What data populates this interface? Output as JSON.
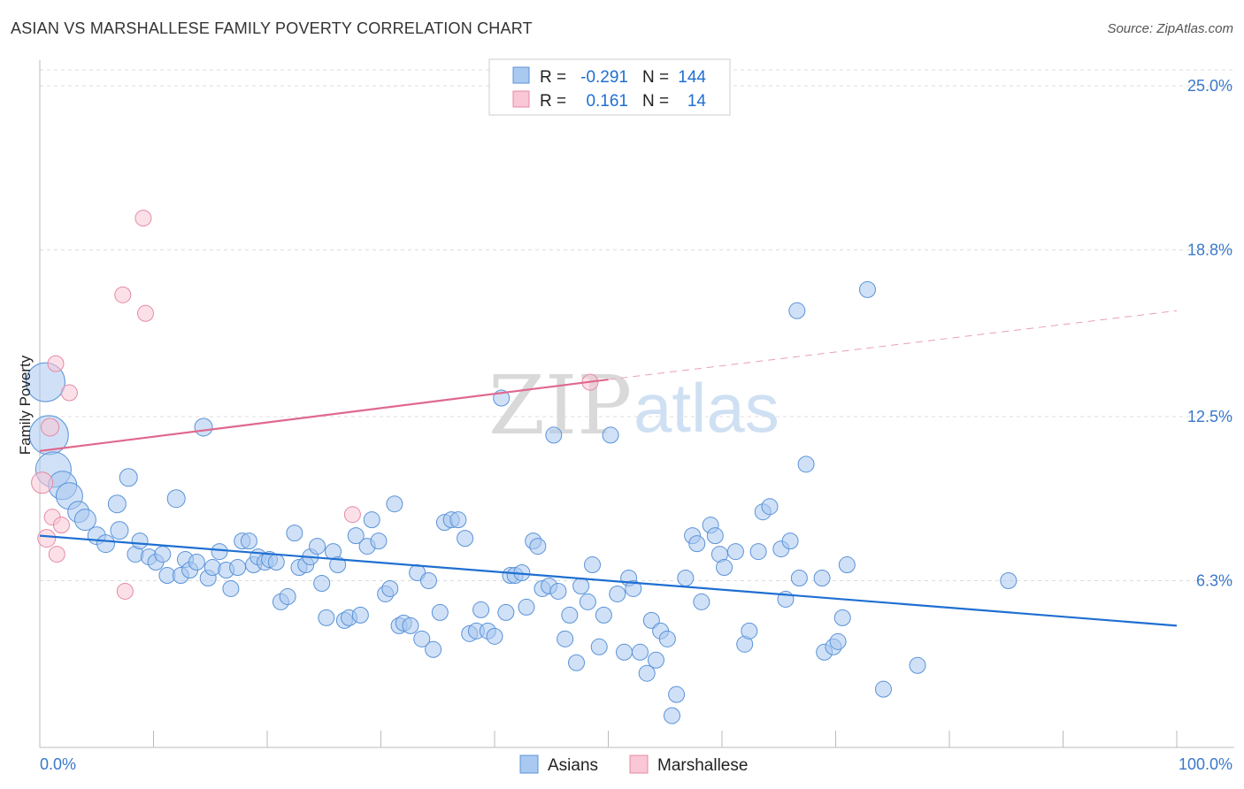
{
  "title": "ASIAN VS MARSHALLESE FAMILY POVERTY CORRELATION CHART",
  "source": "Source: ZipAtlas.com",
  "watermark": {
    "part1": "ZIP",
    "part2": "atlas"
  },
  "legend": {
    "r_label": "R =",
    "n_label": "N =",
    "rows": [
      {
        "r": "-0.291",
        "n": "144",
        "color": "#a9c9f0",
        "stroke": "#5a93d8"
      },
      {
        "r": "0.161",
        "n": "14",
        "color": "#f9c7d5",
        "stroke": "#e48aa6"
      }
    ]
  },
  "bottom_legend": [
    "Asians",
    "Marshallese"
  ],
  "chart_data": {
    "type": "scatter",
    "title": "ASIAN VS MARSHALLESE FAMILY POVERTY CORRELATION CHART",
    "ylabel": "Family Poverty",
    "xlabel": "",
    "x_ticks": [
      "0.0%",
      "100.0%"
    ],
    "y_ticks": [
      "25.0%",
      "18.8%",
      "12.5%",
      "6.3%"
    ],
    "y_tick_values": [
      25.0,
      18.8,
      12.5,
      6.3
    ],
    "xlim": [
      0,
      100
    ],
    "ylim": [
      0,
      25.6
    ],
    "grid": true,
    "legend_position": "top-center",
    "series": [
      {
        "name": "Asians",
        "color": "#a9c9f0",
        "stroke": "#5a93d8",
        "points": [
          [
            0.5,
            13.8,
            2.2
          ],
          [
            0.8,
            11.8,
            2.2
          ],
          [
            1.2,
            10.5,
            2.0
          ],
          [
            2.0,
            9.9,
            1.6
          ],
          [
            2.6,
            9.5,
            1.5
          ],
          [
            3.4,
            8.9,
            1.2
          ],
          [
            4.0,
            8.6,
            1.2
          ],
          [
            5.0,
            8.0,
            1.0
          ],
          [
            5.8,
            7.7,
            1.0
          ],
          [
            6.8,
            9.2,
            1.0
          ],
          [
            7.0,
            8.2,
            1.0
          ],
          [
            7.8,
            10.2,
            1.0
          ],
          [
            8.4,
            7.3,
            0.9
          ],
          [
            8.8,
            7.8,
            0.9
          ],
          [
            9.6,
            7.2,
            0.9
          ],
          [
            10.2,
            7.0,
            0.9
          ],
          [
            10.8,
            7.3,
            0.9
          ],
          [
            11.2,
            6.5,
            0.9
          ],
          [
            12.0,
            9.4,
            1.0
          ],
          [
            12.4,
            6.5,
            0.9
          ],
          [
            12.8,
            7.1,
            0.9
          ],
          [
            13.2,
            6.7,
            0.9
          ],
          [
            13.8,
            7.0,
            0.9
          ],
          [
            14.4,
            12.1,
            1.0
          ],
          [
            14.8,
            6.4,
            0.9
          ],
          [
            15.2,
            6.8,
            0.9
          ],
          [
            15.8,
            7.4,
            0.9
          ],
          [
            16.4,
            6.7,
            0.9
          ],
          [
            16.8,
            6.0,
            0.9
          ],
          [
            17.4,
            6.8,
            0.9
          ],
          [
            17.8,
            7.8,
            0.9
          ],
          [
            18.4,
            7.8,
            0.9
          ],
          [
            18.8,
            6.9,
            0.9
          ],
          [
            19.2,
            7.2,
            0.9
          ],
          [
            19.8,
            7.0,
            0.9
          ],
          [
            20.2,
            7.1,
            0.9
          ],
          [
            20.8,
            7.0,
            0.9
          ],
          [
            21.2,
            5.5,
            0.9
          ],
          [
            21.8,
            5.7,
            0.9
          ],
          [
            22.4,
            8.1,
            0.9
          ],
          [
            22.8,
            6.8,
            0.9
          ],
          [
            23.4,
            6.9,
            0.9
          ],
          [
            23.8,
            7.2,
            0.9
          ],
          [
            24.4,
            7.6,
            0.9
          ],
          [
            24.8,
            6.2,
            0.9
          ],
          [
            25.2,
            4.9,
            0.9
          ],
          [
            25.8,
            7.4,
            0.9
          ],
          [
            26.2,
            6.9,
            0.9
          ],
          [
            26.8,
            4.8,
            0.9
          ],
          [
            27.2,
            4.9,
            0.9
          ],
          [
            27.8,
            8.0,
            0.9
          ],
          [
            28.2,
            5.0,
            0.9
          ],
          [
            28.8,
            7.6,
            0.9
          ],
          [
            29.2,
            8.6,
            0.9
          ],
          [
            29.8,
            7.8,
            0.9
          ],
          [
            30.4,
            5.8,
            0.9
          ],
          [
            30.8,
            6.0,
            0.9
          ],
          [
            31.2,
            9.2,
            0.9
          ],
          [
            31.6,
            4.6,
            0.9
          ],
          [
            32.0,
            4.7,
            0.9
          ],
          [
            32.6,
            4.6,
            0.9
          ],
          [
            33.2,
            6.6,
            0.9
          ],
          [
            33.6,
            4.1,
            0.9
          ],
          [
            34.2,
            6.3,
            0.9
          ],
          [
            34.6,
            3.7,
            0.9
          ],
          [
            35.2,
            5.1,
            0.9
          ],
          [
            35.6,
            8.5,
            0.9
          ],
          [
            36.2,
            8.6,
            0.9
          ],
          [
            36.8,
            8.6,
            0.9
          ],
          [
            37.4,
            7.9,
            0.9
          ],
          [
            37.8,
            4.3,
            0.9
          ],
          [
            38.4,
            4.4,
            0.9
          ],
          [
            38.8,
            5.2,
            0.9
          ],
          [
            39.4,
            4.4,
            0.9
          ],
          [
            40.0,
            4.2,
            0.9
          ],
          [
            40.6,
            13.2,
            0.9
          ],
          [
            41.0,
            5.1,
            0.9
          ],
          [
            41.4,
            6.5,
            0.9
          ],
          [
            41.8,
            6.5,
            0.9
          ],
          [
            42.4,
            6.6,
            0.9
          ],
          [
            42.8,
            5.3,
            0.9
          ],
          [
            43.4,
            7.8,
            0.9
          ],
          [
            43.8,
            7.6,
            0.9
          ],
          [
            44.2,
            6.0,
            0.9
          ],
          [
            44.8,
            6.1,
            0.9
          ],
          [
            45.2,
            11.8,
            0.9
          ],
          [
            45.6,
            5.9,
            0.9
          ],
          [
            46.2,
            4.1,
            0.9
          ],
          [
            46.6,
            5.0,
            0.9
          ],
          [
            47.2,
            3.2,
            0.9
          ],
          [
            47.6,
            6.1,
            0.9
          ],
          [
            48.2,
            5.5,
            0.9
          ],
          [
            48.6,
            6.9,
            0.9
          ],
          [
            49.2,
            3.8,
            0.9
          ],
          [
            49.6,
            5.0,
            0.9
          ],
          [
            50.2,
            11.8,
            0.9
          ],
          [
            50.8,
            5.8,
            0.9
          ],
          [
            51.4,
            3.6,
            0.9
          ],
          [
            51.8,
            6.4,
            0.9
          ],
          [
            52.2,
            6.0,
            0.9
          ],
          [
            52.8,
            3.6,
            0.9
          ],
          [
            53.4,
            2.8,
            0.9
          ],
          [
            53.8,
            4.8,
            0.9
          ],
          [
            54.2,
            3.3,
            0.9
          ],
          [
            54.6,
            4.4,
            0.9
          ],
          [
            55.2,
            4.1,
            0.9
          ],
          [
            55.6,
            1.2,
            0.9
          ],
          [
            56.0,
            2.0,
            0.9
          ],
          [
            56.8,
            6.4,
            0.9
          ],
          [
            57.4,
            8.0,
            0.9
          ],
          [
            57.8,
            7.7,
            0.9
          ],
          [
            58.2,
            5.5,
            0.9
          ],
          [
            59.0,
            8.4,
            0.9
          ],
          [
            59.4,
            8.0,
            0.9
          ],
          [
            59.8,
            7.3,
            0.9
          ],
          [
            60.2,
            6.8,
            0.9
          ],
          [
            61.2,
            7.4,
            0.9
          ],
          [
            62.0,
            3.9,
            0.9
          ],
          [
            62.4,
            4.4,
            0.9
          ],
          [
            63.2,
            7.4,
            0.9
          ],
          [
            63.6,
            8.9,
            0.9
          ],
          [
            64.2,
            9.1,
            0.9
          ],
          [
            65.2,
            7.5,
            0.9
          ],
          [
            65.6,
            5.6,
            0.9
          ],
          [
            66.0,
            7.8,
            0.9
          ],
          [
            66.6,
            16.5,
            0.9
          ],
          [
            66.8,
            6.4,
            0.9
          ],
          [
            67.4,
            10.7,
            0.9
          ],
          [
            68.8,
            6.4,
            0.9
          ],
          [
            69.0,
            3.6,
            0.9
          ],
          [
            69.8,
            3.8,
            0.9
          ],
          [
            70.2,
            4.0,
            0.9
          ],
          [
            70.6,
            4.9,
            0.9
          ],
          [
            71.0,
            6.9,
            0.9
          ],
          [
            72.8,
            17.3,
            0.9
          ],
          [
            74.2,
            2.2,
            0.9
          ],
          [
            77.2,
            3.1,
            0.9
          ],
          [
            85.2,
            6.3,
            0.9
          ]
        ]
      },
      {
        "name": "Marshallese",
        "color": "#f9c7d5",
        "stroke": "#e48aa6",
        "points": [
          [
            0.2,
            10.0,
            1.2
          ],
          [
            0.6,
            7.9,
            1.0
          ],
          [
            0.9,
            12.1,
            1.0
          ],
          [
            1.1,
            8.7,
            0.9
          ],
          [
            1.4,
            14.5,
            0.9
          ],
          [
            1.5,
            7.3,
            0.9
          ],
          [
            1.9,
            8.4,
            0.9
          ],
          [
            2.6,
            13.4,
            0.9
          ],
          [
            7.3,
            17.1,
            0.9
          ],
          [
            7.5,
            5.9,
            0.9
          ],
          [
            9.1,
            20.0,
            0.9
          ],
          [
            9.3,
            16.4,
            0.9
          ],
          [
            27.5,
            8.8,
            0.9
          ],
          [
            48.4,
            13.8,
            0.9
          ]
        ]
      }
    ],
    "trend_lines": [
      {
        "series": "Asians",
        "x": [
          0,
          100
        ],
        "y": [
          8.0,
          4.6
        ],
        "style": "solid"
      },
      {
        "series": "Marshallese",
        "x": [
          0,
          50
        ],
        "y": [
          11.2,
          13.9
        ],
        "style": "solid"
      },
      {
        "series": "Marshallese",
        "x": [
          50,
          100
        ],
        "y": [
          13.9,
          16.5
        ],
        "style": "dashed"
      }
    ]
  }
}
